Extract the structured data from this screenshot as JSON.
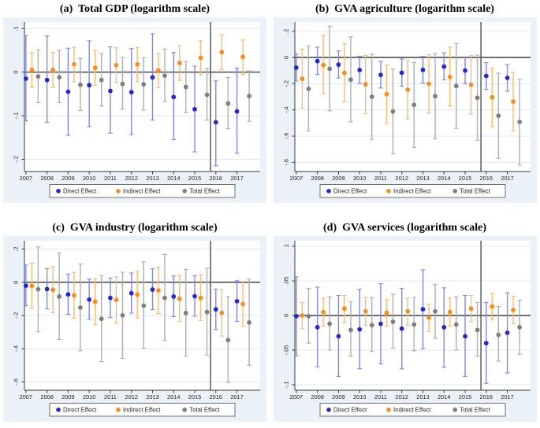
{
  "figure": {
    "background": "#ffffff",
    "panel_background": "#eaf1f7",
    "plot_background": "#ffffff",
    "grid_color": "#dfeaf2",
    "axis_color": "#3a3a3a",
    "ref_line_color": "#595959",
    "tick_label_color": "#1f1f1f",
    "legend_border_color": "#6f6f6f",
    "legend_background": "#ffffff"
  },
  "series_styles": [
    {
      "name": "Direct Effect",
      "point_color": "#2626cf",
      "ci_color": "#8585e8",
      "offset": 0.0
    },
    {
      "name": "Indirect Effect",
      "point_color": "#fb8b1e",
      "ci_color": "#f6bc77",
      "offset": 0.28
    },
    {
      "name": "Total Effect",
      "point_color": "#7f7f7f",
      "ci_color": "#aeaeae",
      "offset": 0.58
    }
  ],
  "chart_data": [
    {
      "type": "scatter",
      "title": "(a)  Total GDP (logarithm scale)",
      "x": [
        2007,
        2008,
        2009,
        2010,
        2011,
        2012,
        2013,
        2014,
        2015,
        2016,
        2017
      ],
      "xlabel": "",
      "ylabel": "",
      "ylim": [
        -0.228,
        0.115
      ],
      "yticks": [
        0.1,
        0,
        -0.1,
        -0.2
      ],
      "ytick_labels": [
        ".1",
        "0",
        "-.1",
        "-.2"
      ],
      "ref_hline_y": 0,
      "ref_vline_x": 2015.75,
      "grid": true,
      "legend_position": "bottom",
      "series": [
        {
          "name": "Direct Effect",
          "est": [
            -0.015,
            -0.018,
            -0.045,
            -0.03,
            -0.043,
            -0.046,
            -0.012,
            -0.057,
            -0.085,
            -0.115,
            -0.09
          ],
          "ci_low": [
            -0.112,
            -0.115,
            -0.145,
            -0.125,
            -0.14,
            -0.143,
            -0.11,
            -0.155,
            -0.183,
            -0.215,
            -0.186
          ],
          "ci_high": [
            0.084,
            0.083,
            0.055,
            0.072,
            0.058,
            0.054,
            0.088,
            0.045,
            0.014,
            -0.02,
            0.009
          ]
        },
        {
          "name": "Indirect Effect",
          "est": [
            0.005,
            0.005,
            0.018,
            0.01,
            0.016,
            0.018,
            0.004,
            0.021,
            0.033,
            0.046,
            0.035
          ],
          "ci_low": [
            -0.035,
            -0.035,
            -0.022,
            -0.03,
            -0.024,
            -0.022,
            -0.036,
            -0.019,
            -0.007,
            0.006,
            -0.005
          ],
          "ci_high": [
            0.045,
            0.045,
            0.057,
            0.05,
            0.056,
            0.057,
            0.043,
            0.061,
            0.072,
            0.086,
            0.074
          ]
        },
        {
          "name": "Total Effect",
          "est": [
            -0.01,
            -0.012,
            -0.029,
            -0.018,
            -0.027,
            -0.028,
            -0.008,
            -0.034,
            -0.052,
            -0.072,
            -0.055
          ],
          "ci_low": [
            -0.07,
            -0.07,
            -0.088,
            -0.078,
            -0.085,
            -0.087,
            -0.067,
            -0.093,
            -0.11,
            -0.13,
            -0.113
          ],
          "ci_high": [
            0.051,
            0.05,
            0.031,
            0.043,
            0.034,
            0.033,
            0.053,
            0.024,
            0.008,
            -0.012,
            0.003
          ]
        }
      ]
    },
    {
      "type": "scatter",
      "title": "(b)  GVA agriculture (logarithm scale)",
      "x": [
        2007,
        2008,
        2009,
        2010,
        2011,
        2012,
        2013,
        2014,
        2015,
        2016,
        2017
      ],
      "xlabel": "",
      "ylabel": "",
      "ylim": [
        -0.87,
        0.27
      ],
      "yticks": [
        0.2,
        0,
        -0.2,
        -0.4,
        -0.6,
        -0.8
      ],
      "ytick_labels": [
        ".2",
        "0",
        "-.2",
        "-.4",
        "-.6",
        "-.8"
      ],
      "ref_hline_y": 0,
      "ref_vline_x": 2015.75,
      "grid": true,
      "legend_position": "bottom",
      "series": [
        {
          "name": "Direct Effect",
          "est": [
            -0.078,
            -0.028,
            -0.055,
            -0.096,
            -0.133,
            -0.117,
            -0.095,
            -0.07,
            -0.1,
            -0.141,
            -0.156
          ],
          "ci_low": [
            -0.18,
            -0.13,
            -0.157,
            -0.199,
            -0.233,
            -0.22,
            -0.196,
            -0.171,
            -0.201,
            -0.244,
            -0.258
          ],
          "ci_high": [
            0.029,
            0.078,
            0.05,
            0.009,
            -0.03,
            -0.012,
            0.008,
            0.034,
            0.004,
            -0.04,
            -0.055
          ]
        },
        {
          "name": "Indirect Effect",
          "est": [
            -0.163,
            -0.058,
            -0.118,
            -0.205,
            -0.28,
            -0.246,
            -0.201,
            -0.149,
            -0.209,
            -0.304,
            -0.336
          ],
          "ci_low": [
            -0.385,
            -0.279,
            -0.338,
            -0.427,
            -0.502,
            -0.469,
            -0.424,
            -0.371,
            -0.432,
            -0.528,
            -0.56
          ],
          "ci_high": [
            0.063,
            0.168,
            0.105,
            0.016,
            -0.059,
            -0.024,
            0.021,
            0.079,
            0.014,
            -0.081,
            -0.114
          ]
        },
        {
          "name": "Total Effect",
          "est": [
            -0.24,
            -0.086,
            -0.17,
            -0.3,
            -0.412,
            -0.362,
            -0.295,
            -0.218,
            -0.308,
            -0.445,
            -0.492
          ],
          "ci_low": [
            -0.561,
            -0.407,
            -0.492,
            -0.626,
            -0.736,
            -0.686,
            -0.62,
            -0.541,
            -0.632,
            -0.77,
            -0.82
          ],
          "ci_high": [
            0.089,
            0.238,
            0.157,
            0.026,
            -0.088,
            -0.038,
            0.029,
            0.108,
            0.018,
            -0.12,
            -0.166
          ]
        }
      ]
    },
    {
      "type": "scatter",
      "title": "(c)  GVA industry (logarithm scale)",
      "x": [
        2007,
        2008,
        2009,
        2010,
        2011,
        2012,
        2013,
        2014,
        2015,
        2016,
        2017
      ],
      "xlabel": "",
      "ylabel": "",
      "ylim": [
        -0.65,
        0.25
      ],
      "yticks": [
        0.2,
        0,
        -0.2,
        -0.4,
        -0.6
      ],
      "ytick_labels": [
        ".2",
        "0",
        "-.2",
        "-.4",
        "-.6"
      ],
      "ref_hline_y": 0,
      "ref_vline_x": 2015.75,
      "grid": true,
      "legend_position": "bottom",
      "series": [
        {
          "name": "Direct Effect",
          "est": [
            -0.021,
            -0.041,
            -0.073,
            -0.104,
            -0.094,
            -0.066,
            -0.044,
            -0.086,
            -0.084,
            -0.163,
            -0.114
          ],
          "ci_low": [
            -0.141,
            -0.16,
            -0.193,
            -0.223,
            -0.213,
            -0.186,
            -0.164,
            -0.207,
            -0.204,
            -0.284,
            -0.235
          ],
          "ci_high": [
            0.104,
            0.082,
            0.05,
            0.019,
            0.026,
            0.056,
            0.081,
            0.038,
            0.039,
            -0.041,
            0.009
          ]
        },
        {
          "name": "Indirect Effect",
          "est": [
            -0.022,
            -0.045,
            -0.079,
            -0.117,
            -0.106,
            -0.074,
            -0.049,
            -0.099,
            -0.094,
            -0.184,
            -0.131
          ],
          "ci_low": [
            -0.157,
            -0.184,
            -0.216,
            -0.256,
            -0.245,
            -0.215,
            -0.188,
            -0.237,
            -0.231,
            -0.324,
            -0.266
          ],
          "ci_high": [
            0.115,
            0.094,
            0.059,
            0.022,
            0.034,
            0.066,
            0.091,
            0.041,
            0.044,
            -0.044,
            0.005
          ]
        },
        {
          "name": "Total Effect",
          "est": [
            -0.042,
            -0.086,
            -0.152,
            -0.22,
            -0.199,
            -0.141,
            -0.094,
            -0.185,
            -0.179,
            -0.348,
            -0.242
          ],
          "ci_low": [
            -0.298,
            -0.344,
            -0.412,
            -0.478,
            -0.458,
            -0.398,
            -0.35,
            -0.445,
            -0.44,
            -0.604,
            -0.5
          ],
          "ci_high": [
            0.213,
            0.177,
            0.11,
            0.04,
            0.06,
            0.124,
            0.168,
            0.078,
            0.084,
            -0.086,
            0.018
          ]
        }
      ]
    },
    {
      "type": "scatter",
      "title": "(d)  GVA services (logarithm scale)",
      "x": [
        2007,
        2008,
        2009,
        2010,
        2011,
        2012,
        2013,
        2014,
        2015,
        2016,
        2017
      ],
      "xlabel": "",
      "ylabel": "",
      "ylim": [
        -0.108,
        0.108
      ],
      "yticks": [
        0.1,
        0.05,
        0,
        -0.05,
        -0.1
      ],
      "ytick_labels": [
        ".1",
        ".05",
        "0",
        "-.05",
        "-.1"
      ],
      "ref_hline_y": 0,
      "ref_vline_x": 2015.75,
      "grid": true,
      "legend_position": "bottom",
      "series": [
        {
          "name": "Direct Effect",
          "est": [
            -0.001,
            -0.017,
            -0.03,
            -0.02,
            -0.012,
            -0.019,
            0.009,
            -0.017,
            -0.03,
            -0.04,
            -0.025
          ],
          "ci_low": [
            -0.058,
            -0.074,
            -0.088,
            -0.077,
            -0.07,
            -0.077,
            -0.048,
            -0.075,
            -0.088,
            -0.098,
            -0.083
          ],
          "ci_high": [
            0.056,
            0.041,
            0.029,
            0.038,
            0.046,
            0.039,
            0.066,
            0.04,
            0.029,
            0.019,
            0.033
          ]
        },
        {
          "name": "Indirect Effect",
          "est": [
            0.0,
            0.005,
            0.01,
            0.006,
            0.004,
            0.006,
            -0.003,
            0.005,
            0.01,
            0.013,
            0.008
          ],
          "ci_low": [
            -0.019,
            -0.015,
            -0.01,
            -0.014,
            -0.016,
            -0.014,
            -0.023,
            -0.015,
            -0.009,
            -0.006,
            -0.012
          ],
          "ci_high": [
            0.019,
            0.025,
            0.029,
            0.026,
            0.023,
            0.025,
            0.016,
            0.025,
            0.029,
            0.032,
            0.028
          ]
        },
        {
          "name": "Total Effect",
          "est": [
            -0.001,
            -0.012,
            -0.021,
            -0.014,
            -0.009,
            -0.013,
            0.006,
            -0.013,
            -0.021,
            -0.028,
            -0.017
          ],
          "ci_low": [
            -0.04,
            -0.05,
            -0.059,
            -0.052,
            -0.047,
            -0.051,
            -0.033,
            -0.05,
            -0.059,
            -0.066,
            -0.056
          ],
          "ci_high": [
            0.039,
            0.027,
            0.02,
            0.026,
            0.031,
            0.026,
            0.045,
            0.027,
            0.019,
            0.013,
            0.022
          ]
        }
      ]
    }
  ]
}
